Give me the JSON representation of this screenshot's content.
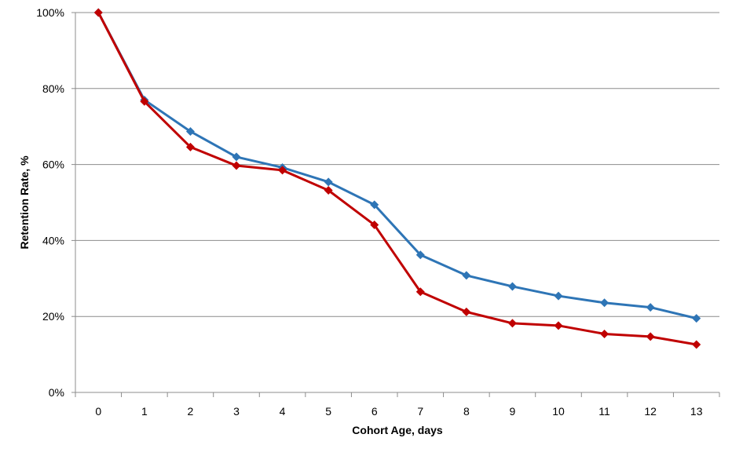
{
  "chart_data": {
    "type": "line",
    "title": "",
    "xlabel": "Cohort Age, days",
    "ylabel": "Retention Rate, %",
    "x": [
      0,
      1,
      2,
      3,
      4,
      5,
      6,
      7,
      8,
      9,
      10,
      11,
      12,
      13
    ],
    "x_tick_labels": [
      "0",
      "1",
      "2",
      "3",
      "4",
      "5",
      "6",
      "7",
      "8",
      "9",
      "10",
      "11",
      "12",
      "13"
    ],
    "y_ticks": [
      0,
      20,
      40,
      60,
      80,
      100
    ],
    "y_tick_labels": [
      "0%",
      "20%",
      "40%",
      "60%",
      "80%",
      "100%"
    ],
    "ylim": [
      0,
      100
    ],
    "grid": true,
    "legend": "none",
    "marker": "diamond",
    "series": [
      {
        "color": "#2e75b6",
        "values": [
          100,
          77,
          68.7,
          62,
          59.2,
          55.4,
          49.4,
          36.2,
          30.8,
          27.9,
          25.4,
          23.6,
          22.4,
          19.5
        ]
      },
      {
        "color": "#c00000",
        "values": [
          100,
          76.6,
          64.6,
          59.7,
          58.5,
          53.2,
          44.1,
          26.5,
          21.2,
          18.2,
          17.6,
          15.4,
          14.7,
          12.6
        ]
      }
    ]
  }
}
